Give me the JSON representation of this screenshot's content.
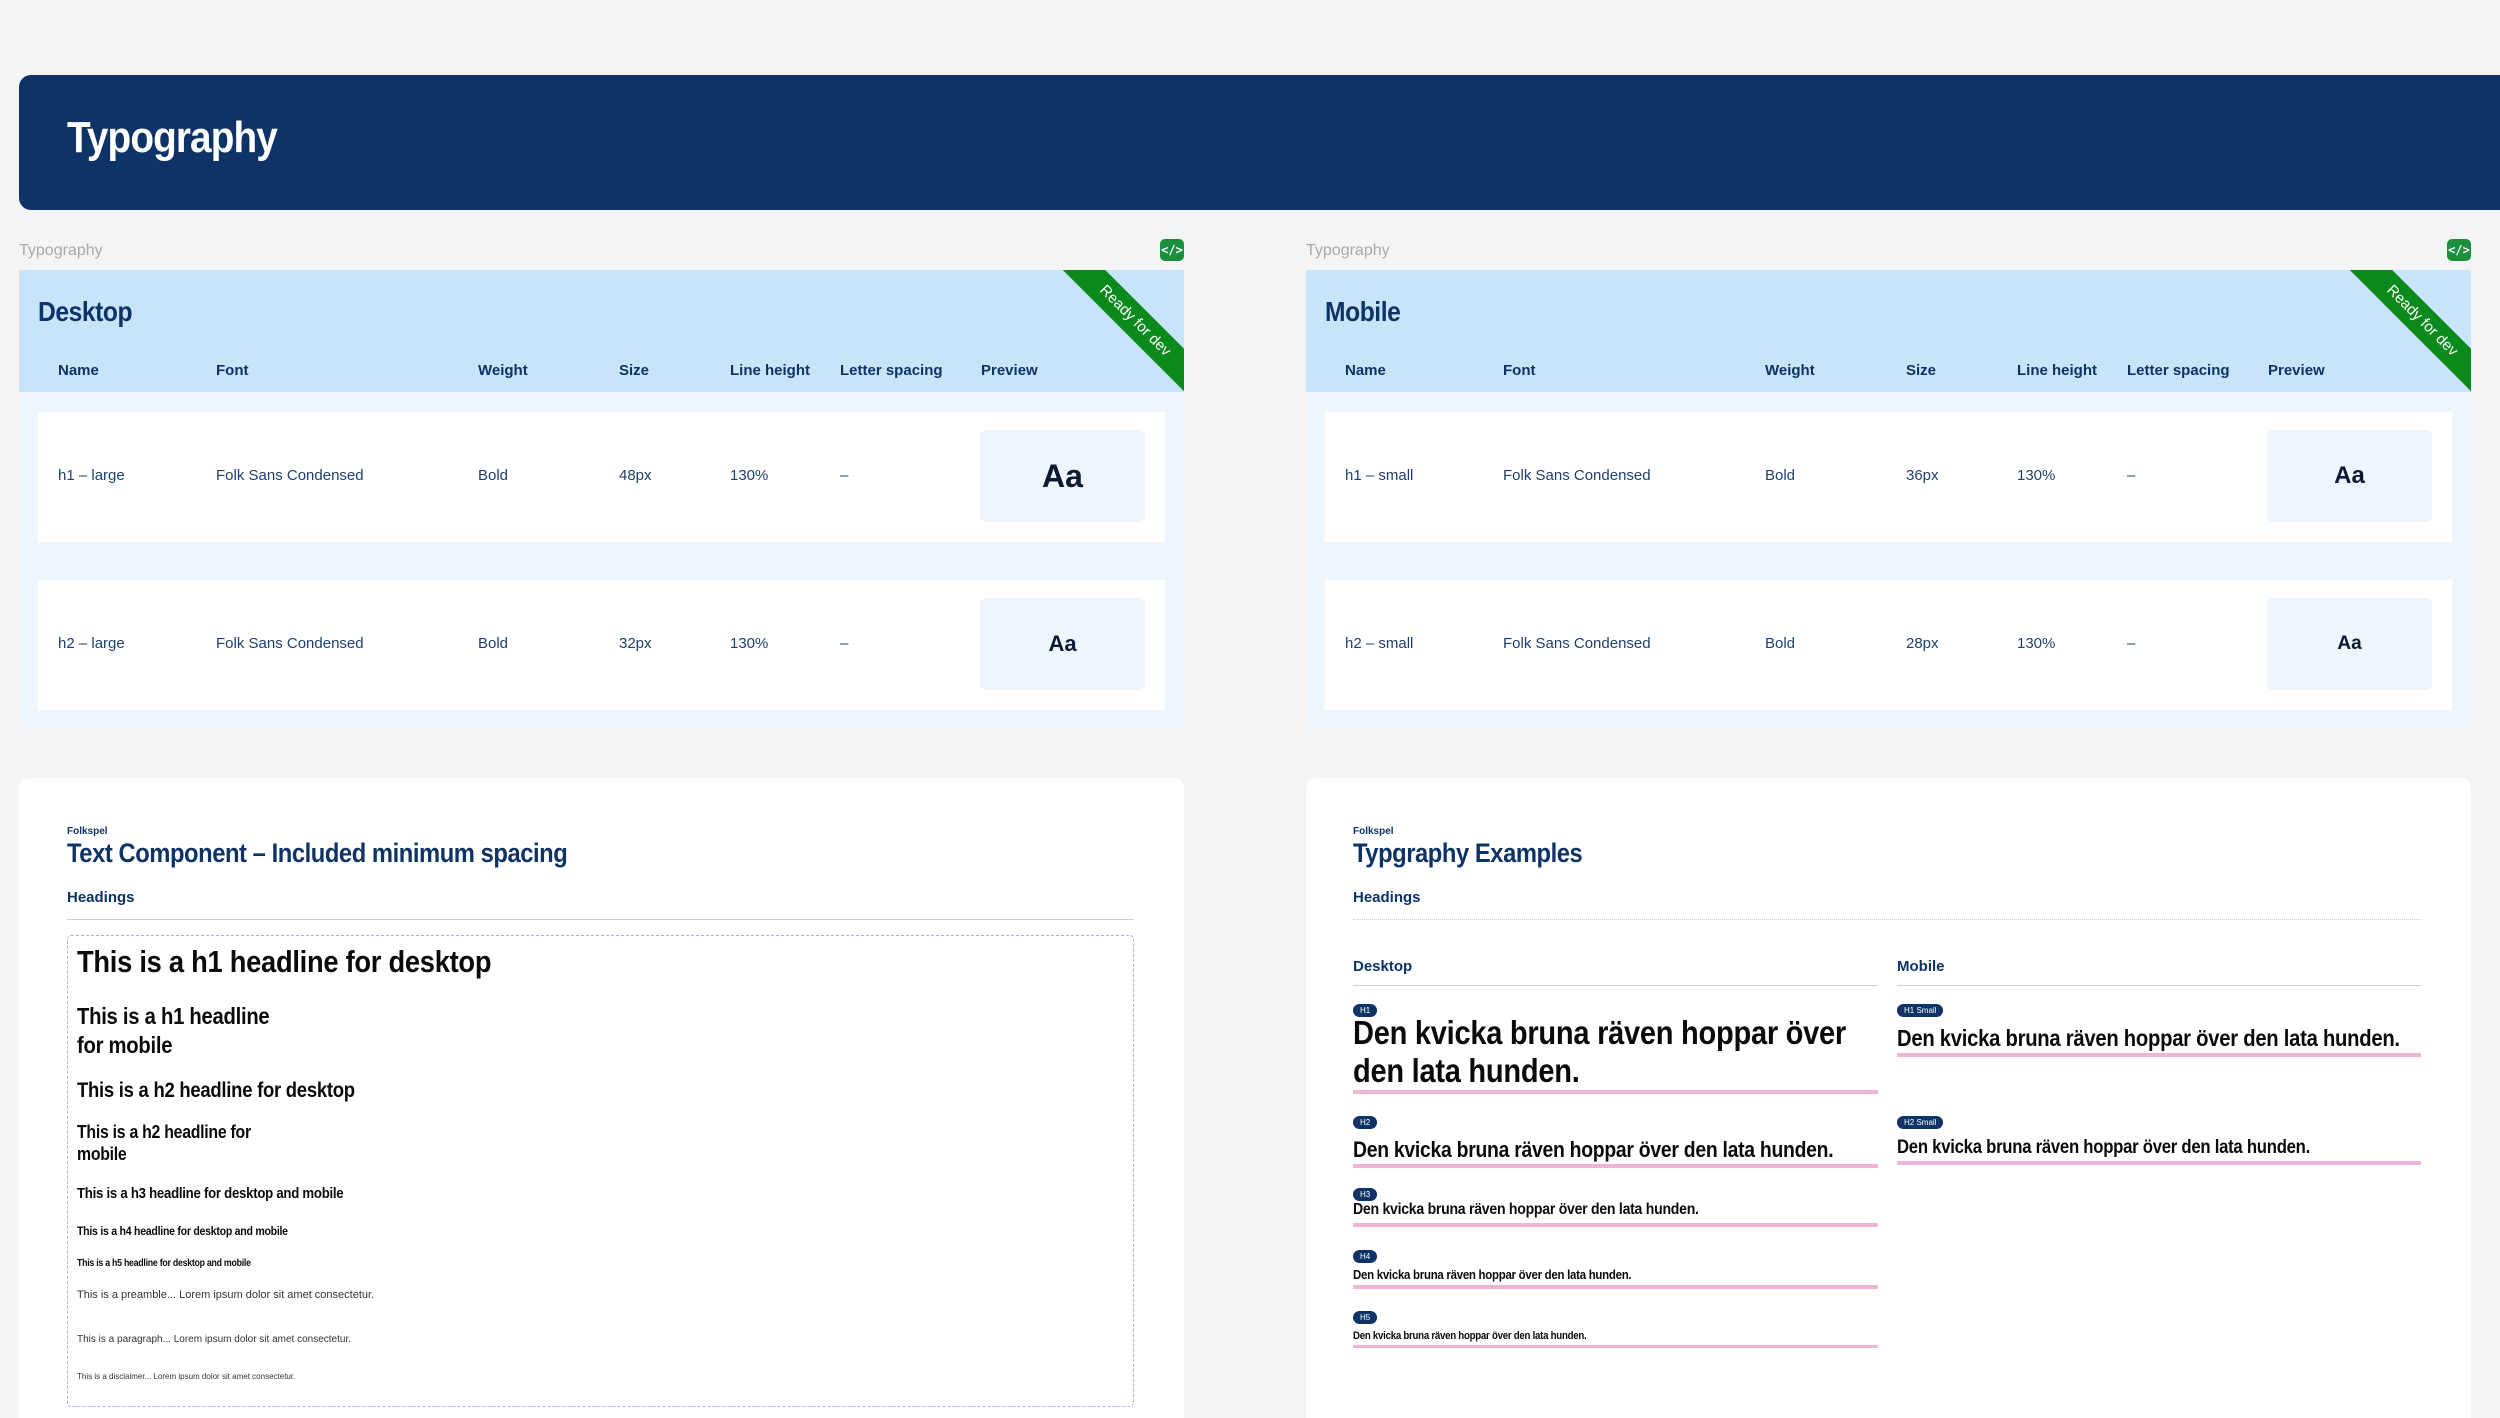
{
  "header": {
    "title": "Typography"
  },
  "panels": {
    "frame_label": "Typography",
    "ribbon": "Ready for dev",
    "dev_icon": "code-icon",
    "columns": [
      "Name",
      "Font",
      "Weight",
      "Size",
      "Line height",
      "Letter spacing",
      "Preview"
    ],
    "preview_glyph": "Aa",
    "desktop": {
      "title": "Desktop",
      "rows": [
        {
          "name": "h1 – large",
          "font": "Folk Sans Condensed",
          "weight": "Bold",
          "size": "48px",
          "line_height": "130%",
          "letter_spacing": "–"
        },
        {
          "name": "h2 – large",
          "font": "Folk Sans Condensed",
          "weight": "Bold",
          "size": "32px",
          "line_height": "130%",
          "letter_spacing": "–"
        }
      ]
    },
    "mobile": {
      "title": "Mobile",
      "rows": [
        {
          "name": "h1 – small",
          "font": "Folk Sans Condensed",
          "weight": "Bold",
          "size": "36px",
          "line_height": "130%",
          "letter_spacing": "–"
        },
        {
          "name": "h2 – small",
          "font": "Folk Sans Condensed",
          "weight": "Bold",
          "size": "28px",
          "line_height": "130%",
          "letter_spacing": "–"
        }
      ]
    }
  },
  "text_component": {
    "brand": "Folkspel",
    "title": "Text Component – Included minimum spacing",
    "subtitle": "Headings",
    "items": {
      "h1_desktop": "This is a h1 headline for desktop",
      "h1_mobile_1": "This is a h1 headline",
      "h1_mobile_2": "for mobile",
      "h2_desktop": "This is a h2 headline for desktop",
      "h2_mobile_1": "This is a h2 headline for",
      "h2_mobile_2": "mobile",
      "h3": "This is a h3 headline for desktop and mobile",
      "h4": "This is a h4 headline for desktop and mobile",
      "h5": "This is a h5 headline for desktop and mobile",
      "preamble": "This is a preamble... Lorem ipsum dolor sit amet consectetur.",
      "paragraph": "This is a paragraph... Lorem ipsum dolor sit amet consectetur.",
      "disclaimer": "This is a disclaimer... Lorem ipsum dolor sit amet consectetur."
    }
  },
  "examples": {
    "brand": "Folkspel",
    "title": "Typgraphy Examples",
    "subtitle": "Headings",
    "desktop_label": "Desktop",
    "mobile_label": "Mobile",
    "sample": "Den kvicka bruna räven hoppar över den lata hunden.",
    "desktop_tags": [
      "H1",
      "H2",
      "H3",
      "H4",
      "H5"
    ],
    "mobile_tags": [
      "H1 Small",
      "H2 Small"
    ]
  }
}
